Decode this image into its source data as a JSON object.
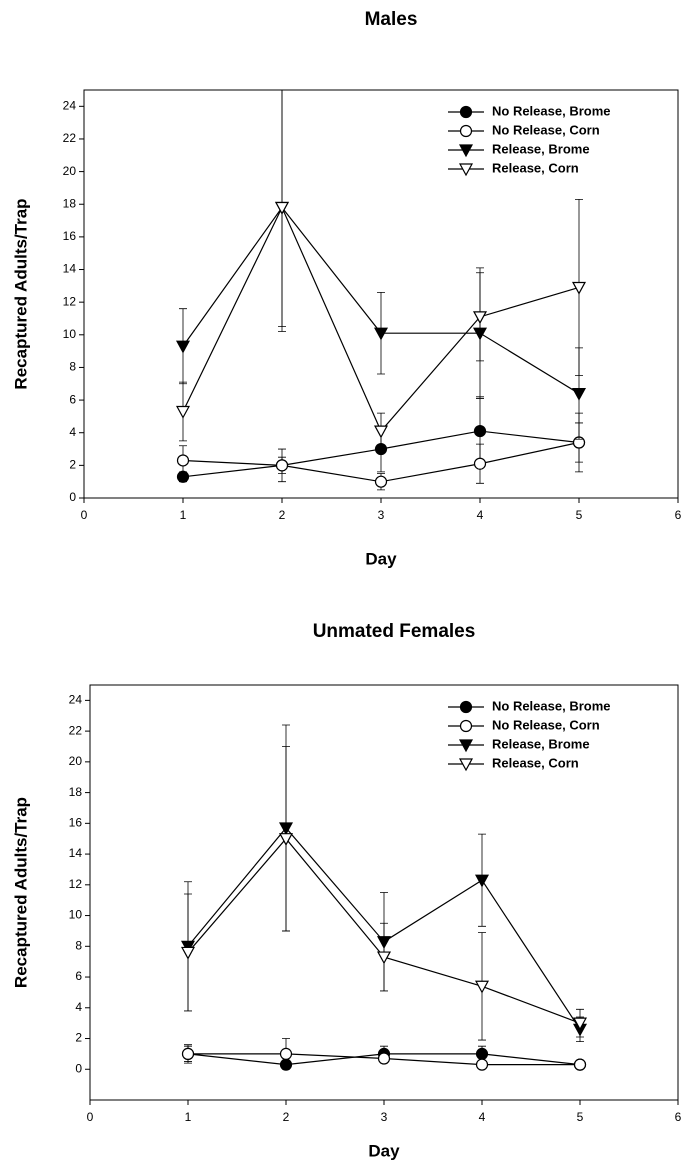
{
  "chart_data": [
    {
      "type": "line",
      "title": "Males",
      "x_label": "Day",
      "y_label": "Recaptured Adults/Trap",
      "x": [
        1,
        2,
        3,
        4,
        5
      ],
      "xlim": [
        0,
        6
      ],
      "xticks": [
        0,
        1,
        2,
        3,
        4,
        5,
        6
      ],
      "ylim": [
        0,
        25
      ],
      "yticks": [
        0,
        2,
        4,
        6,
        8,
        10,
        12,
        14,
        16,
        18,
        20,
        22,
        24
      ],
      "legend": "top-right",
      "series": [
        {
          "name": "No Release, Brome",
          "color": "#000000",
          "marker": "circle",
          "filled": true,
          "values": [
            1.3,
            2.0,
            3.0,
            4.1,
            3.4
          ],
          "errors": [
            0.3,
            0.5,
            1.4,
            2.1,
            1.8
          ]
        },
        {
          "name": "No Release, Corn",
          "color": "#000000",
          "marker": "circle",
          "filled": false,
          "values": [
            2.3,
            2.0,
            1.0,
            2.1,
            3.4
          ],
          "errors": [
            0.9,
            1.0,
            0.5,
            1.2,
            1.2
          ]
        },
        {
          "name": "Release, Brome",
          "color": "#000000",
          "marker": "triangle",
          "filled": true,
          "values": [
            9.3,
            17.8,
            10.1,
            10.1,
            6.4
          ],
          "errors": [
            2.3,
            7.3,
            2.5,
            4.0,
            2.8
          ]
        },
        {
          "name": "Release, Corn",
          "color": "#000000",
          "marker": "triangle",
          "filled": false,
          "values": [
            5.3,
            17.8,
            4.1,
            11.1,
            12.9
          ],
          "errors": [
            1.8,
            7.6,
            1.1,
            2.7,
            5.4
          ]
        }
      ]
    },
    {
      "type": "line",
      "title": "Unmated Females",
      "x_label": "Day",
      "y_label": "Recaptured Adults/Trap",
      "x": [
        1,
        2,
        3,
        4,
        5
      ],
      "xlim": [
        0,
        6
      ],
      "xticks": [
        0,
        1,
        2,
        3,
        4,
        5,
        6
      ],
      "ylim": [
        -2,
        25
      ],
      "yticks": [
        0,
        2,
        4,
        6,
        8,
        10,
        12,
        14,
        16,
        18,
        20,
        22,
        24
      ],
      "legend": "top-right",
      "series": [
        {
          "name": "No Release, Brome",
          "color": "#000000",
          "marker": "circle",
          "filled": true,
          "values": [
            1.0,
            0.3,
            1.0,
            1.0,
            0.3
          ],
          "errors": [
            0.5,
            0.2,
            0.5,
            0.5,
            0.1
          ]
        },
        {
          "name": "No Release, Corn",
          "color": "#000000",
          "marker": "circle",
          "filled": false,
          "values": [
            1.0,
            1.0,
            0.7,
            0.3,
            0.3
          ],
          "errors": [
            0.6,
            1.0,
            0.3,
            0.2,
            0.1
          ]
        },
        {
          "name": "Release, Brome",
          "color": "#000000",
          "marker": "triangle",
          "filled": true,
          "values": [
            8.0,
            15.7,
            8.3,
            12.3,
            2.6
          ],
          "errors": [
            4.2,
            6.7,
            3.2,
            3.0,
            0.8
          ]
        },
        {
          "name": "Release, Corn",
          "color": "#000000",
          "marker": "triangle",
          "filled": false,
          "values": [
            7.6,
            15.0,
            7.3,
            5.4,
            3.0
          ],
          "errors": [
            3.8,
            6.0,
            2.2,
            3.5,
            0.9
          ]
        }
      ]
    }
  ]
}
